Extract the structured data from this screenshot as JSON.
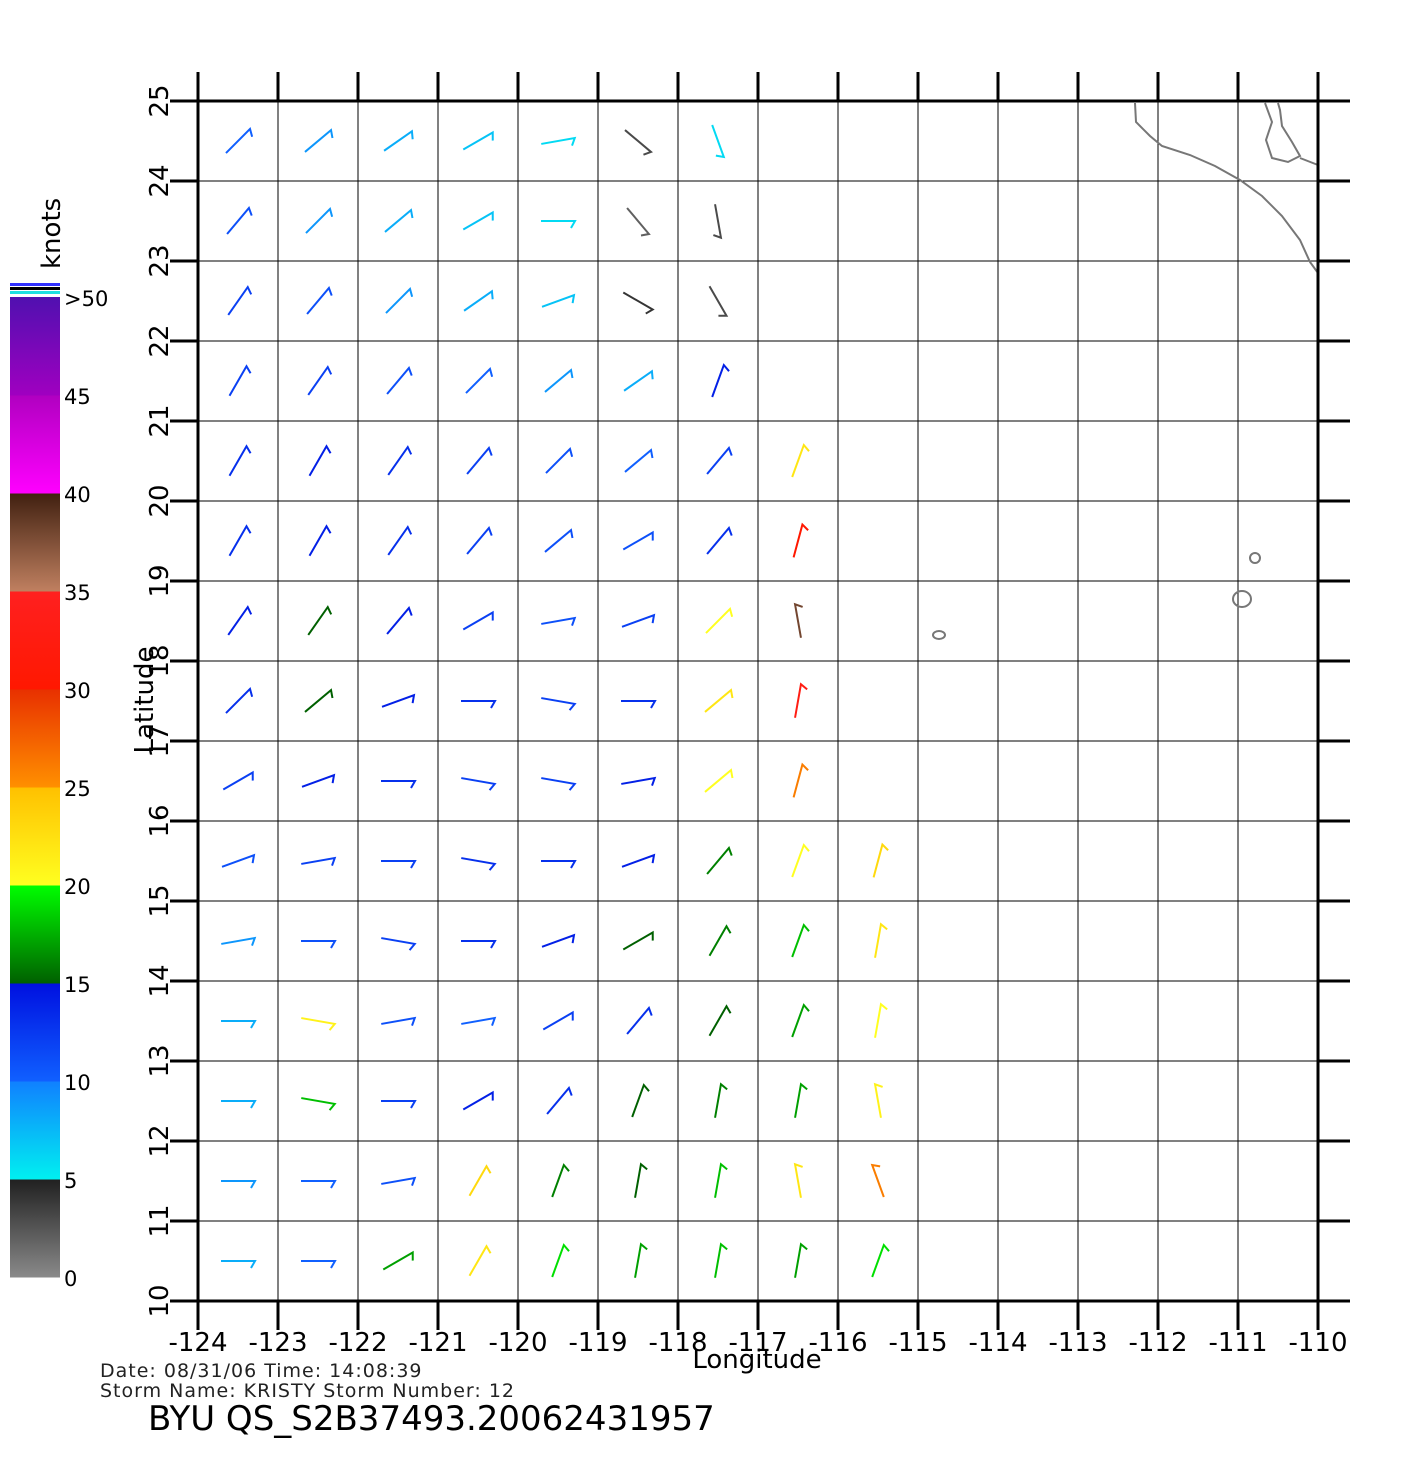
{
  "chart_data": {
    "type": "wind",
    "title": "BYU  QS_S2B37493.20062431957",
    "info_lines": [
      "Date: 08/31/06   Time: 14:08:39",
      "Storm  Name: KRISTY   Storm  Number: 12"
    ],
    "x_label": "Longitude",
    "y_label": "Latitude",
    "xlim": [
      -124,
      -110
    ],
    "ylim": [
      10,
      25
    ],
    "xticks": [
      -124,
      -123,
      -122,
      -121,
      -120,
      -119,
      -118,
      -117,
      -116,
      -115,
      -114,
      -113,
      -112,
      -111,
      -110
    ],
    "yticks": [
      10,
      11,
      12,
      13,
      14,
      15,
      16,
      17,
      18,
      19,
      20,
      21,
      22,
      23,
      24,
      25
    ],
    "grid": true,
    "colorbar": {
      "title": "knots",
      "lim": [
        0,
        50
      ],
      "ticks": [
        0,
        5,
        10,
        15,
        20,
        25,
        30,
        35,
        40,
        45,
        {
          "value": 50,
          "label": ">50"
        }
      ],
      "bands": [
        [
          "#8a8a8a",
          "#202020"
        ],
        [
          "#00f0f0",
          "#1080ff"
        ],
        [
          "#1060ff",
          "#0010e0"
        ],
        [
          "#006000",
          "#00ff00"
        ],
        [
          "#ffff20",
          "#ffc000"
        ],
        [
          "#ff9000",
          "#e83000"
        ],
        [
          "#ff1800",
          "#ff2020"
        ],
        [
          "#c08060",
          "#402010"
        ],
        [
          "#ff00ff",
          "#b000c0"
        ],
        [
          "#a000c0",
          "#5010b0"
        ]
      ]
    },
    "winds": {
      "lon": [
        -123.5,
        -122.5,
        -121.5,
        -120.5,
        -119.5,
        -118.5,
        -117.5,
        -123.5,
        -122.5,
        -121.5,
        -120.5,
        -119.5,
        -118.5,
        -117.5,
        -123.5,
        -122.5,
        -121.5,
        -120.5,
        -119.5,
        -118.5,
        -117.5,
        -123.5,
        -122.5,
        -121.5,
        -120.5,
        -119.5,
        -118.5,
        -117.5,
        -123.5,
        -122.5,
        -121.5,
        -120.5,
        -119.5,
        -118.5,
        -117.5,
        -116.5,
        -123.5,
        -122.5,
        -121.5,
        -120.5,
        -119.5,
        -118.5,
        -117.5,
        -116.5,
        -123.5,
        -122.5,
        -121.5,
        -120.5,
        -119.5,
        -118.5,
        -117.5,
        -116.5,
        -123.5,
        -122.5,
        -121.5,
        -120.5,
        -119.5,
        -118.5,
        -117.5,
        -116.5,
        -123.5,
        -122.5,
        -121.5,
        -120.5,
        -119.5,
        -118.5,
        -117.5,
        -116.5,
        -123.5,
        -122.5,
        -121.5,
        -120.5,
        -119.5,
        -118.5,
        -117.5,
        -116.5,
        -115.5,
        -123.5,
        -122.5,
        -121.5,
        -120.5,
        -119.5,
        -118.5,
        -117.5,
        -116.5,
        -115.5,
        -123.5,
        -122.5,
        -121.5,
        -120.5,
        -119.5,
        -118.5,
        -117.5,
        -116.5,
        -115.5,
        -123.5,
        -122.5,
        -121.5,
        -120.5,
        -119.5,
        -118.5,
        -117.5,
        -116.5,
        -115.5,
        -123.5,
        -122.5,
        -121.5,
        -120.5,
        -119.5,
        -118.5,
        -117.5,
        -116.5,
        -115.5,
        -123.5,
        -122.5,
        -121.5,
        -120.5,
        -119.5,
        -118.5,
        -117.5,
        -116.5,
        -115.5
      ],
      "lat": [
        24.5,
        24.5,
        24.5,
        24.5,
        24.5,
        24.5,
        24.5,
        23.5,
        23.5,
        23.5,
        23.5,
        23.5,
        23.5,
        23.5,
        22.5,
        22.5,
        22.5,
        22.5,
        22.5,
        22.5,
        22.5,
        21.5,
        21.5,
        21.5,
        21.5,
        21.5,
        21.5,
        21.5,
        20.5,
        20.5,
        20.5,
        20.5,
        20.5,
        20.5,
        20.5,
        20.5,
        19.5,
        19.5,
        19.5,
        19.5,
        19.5,
        19.5,
        19.5,
        19.5,
        18.5,
        18.5,
        18.5,
        18.5,
        18.5,
        18.5,
        18.5,
        18.5,
        17.5,
        17.5,
        17.5,
        17.5,
        17.5,
        17.5,
        17.5,
        17.5,
        16.5,
        16.5,
        16.5,
        16.5,
        16.5,
        16.5,
        16.5,
        16.5,
        15.5,
        15.5,
        15.5,
        15.5,
        15.5,
        15.5,
        15.5,
        15.5,
        15.5,
        14.5,
        14.5,
        14.5,
        14.5,
        14.5,
        14.5,
        14.5,
        14.5,
        14.5,
        13.5,
        13.5,
        13.5,
        13.5,
        13.5,
        13.5,
        13.5,
        13.5,
        13.5,
        12.5,
        12.5,
        12.5,
        12.5,
        12.5,
        12.5,
        12.5,
        12.5,
        12.5,
        11.5,
        11.5,
        11.5,
        11.5,
        11.5,
        11.5,
        11.5,
        11.5,
        11.5,
        10.5,
        10.5,
        10.5,
        10.5,
        10.5,
        10.5,
        10.5,
        10.5,
        10.5
      ],
      "speed": [
        10,
        9,
        8,
        7,
        6,
        3,
        6,
        11,
        9,
        8,
        7,
        6,
        2,
        3,
        12,
        11,
        9,
        8,
        7,
        4,
        3,
        12,
        12,
        11,
        10,
        9,
        8,
        14,
        13,
        14,
        13,
        12,
        11,
        10,
        12,
        22,
        13,
        14,
        13,
        12,
        11,
        11,
        13,
        30,
        14,
        15,
        14,
        12,
        11,
        12,
        20,
        38,
        13,
        15,
        14,
        13,
        12,
        13,
        22,
        33,
        12,
        14,
        13,
        12,
        12,
        14,
        20,
        26,
        11,
        12,
        12,
        13,
        13,
        14,
        16,
        20,
        23,
        9,
        11,
        12,
        13,
        14,
        15,
        16,
        18,
        22,
        8,
        21,
        11,
        10,
        12,
        13,
        15,
        17,
        20,
        8,
        18,
        12,
        14,
        13,
        15,
        16,
        17,
        21,
        9,
        10,
        11,
        23,
        16,
        15,
        18,
        22,
        26,
        8,
        10,
        17,
        22,
        19,
        17,
        18,
        17,
        19
      ],
      "direction": [
        45,
        50,
        55,
        60,
        80,
        130,
        160,
        40,
        45,
        50,
        60,
        90,
        140,
        170,
        35,
        40,
        45,
        55,
        70,
        120,
        150,
        30,
        35,
        40,
        45,
        50,
        55,
        20,
        30,
        30,
        35,
        40,
        45,
        50,
        40,
        20,
        30,
        30,
        35,
        40,
        50,
        60,
        40,
        15,
        35,
        35,
        40,
        60,
        80,
        70,
        45,
        350,
        45,
        50,
        70,
        90,
        100,
        90,
        50,
        10,
        60,
        70,
        90,
        100,
        100,
        80,
        50,
        15,
        70,
        80,
        90,
        100,
        90,
        70,
        40,
        20,
        15,
        80,
        90,
        100,
        90,
        70,
        60,
        30,
        20,
        10,
        90,
        100,
        80,
        80,
        60,
        40,
        30,
        20,
        10,
        90,
        100,
        90,
        60,
        40,
        20,
        10,
        10,
        350,
        90,
        90,
        80,
        30,
        20,
        10,
        10,
        350,
        340,
        90,
        90,
        60,
        30,
        20,
        10,
        10,
        10,
        20
      ]
    }
  }
}
